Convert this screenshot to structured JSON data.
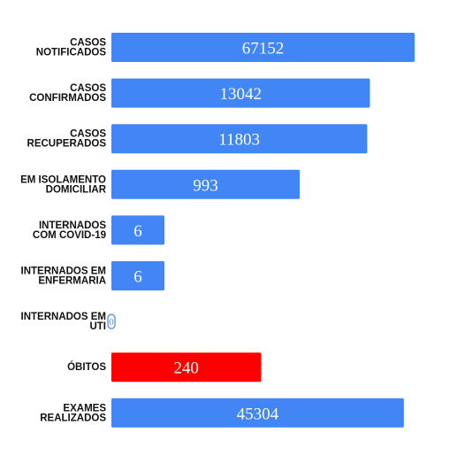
{
  "chart_data": {
    "type": "bar",
    "orientation": "horizontal",
    "categories": [
      [
        "CASOS",
        "NOTIFICADOS"
      ],
      [
        "CASOS",
        "CONFIRMADOS"
      ],
      [
        "CASOS",
        "RECUPERADOS"
      ],
      [
        "EM ISOLAMENTO",
        "DOMICILIAR"
      ],
      [
        "INTERNADOS",
        "COM COVID-19"
      ],
      [
        "INTERNADOS EM",
        "ENFERMARIA"
      ],
      [
        "INTERNADOS EM",
        "UTI"
      ],
      [
        "ÓBITOS"
      ],
      [
        "EXAMES",
        "REALIZADOS"
      ]
    ],
    "values": [
      67152,
      13042,
      11803,
      993,
      6,
      6,
      0,
      240,
      45304
    ],
    "value_labels": [
      "67152",
      "13042",
      "11803",
      "993",
      "6",
      "6",
      "0",
      "240",
      "45304"
    ],
    "colors": [
      "#4285f4",
      "#4285f4",
      "#4285f4",
      "#4285f4",
      "#4285f4",
      "#4285f4",
      "#4285f4",
      "#ff0000",
      "#4285f4"
    ],
    "scale": "log",
    "axis_visible": false,
    "grid": false,
    "legend": "none"
  }
}
